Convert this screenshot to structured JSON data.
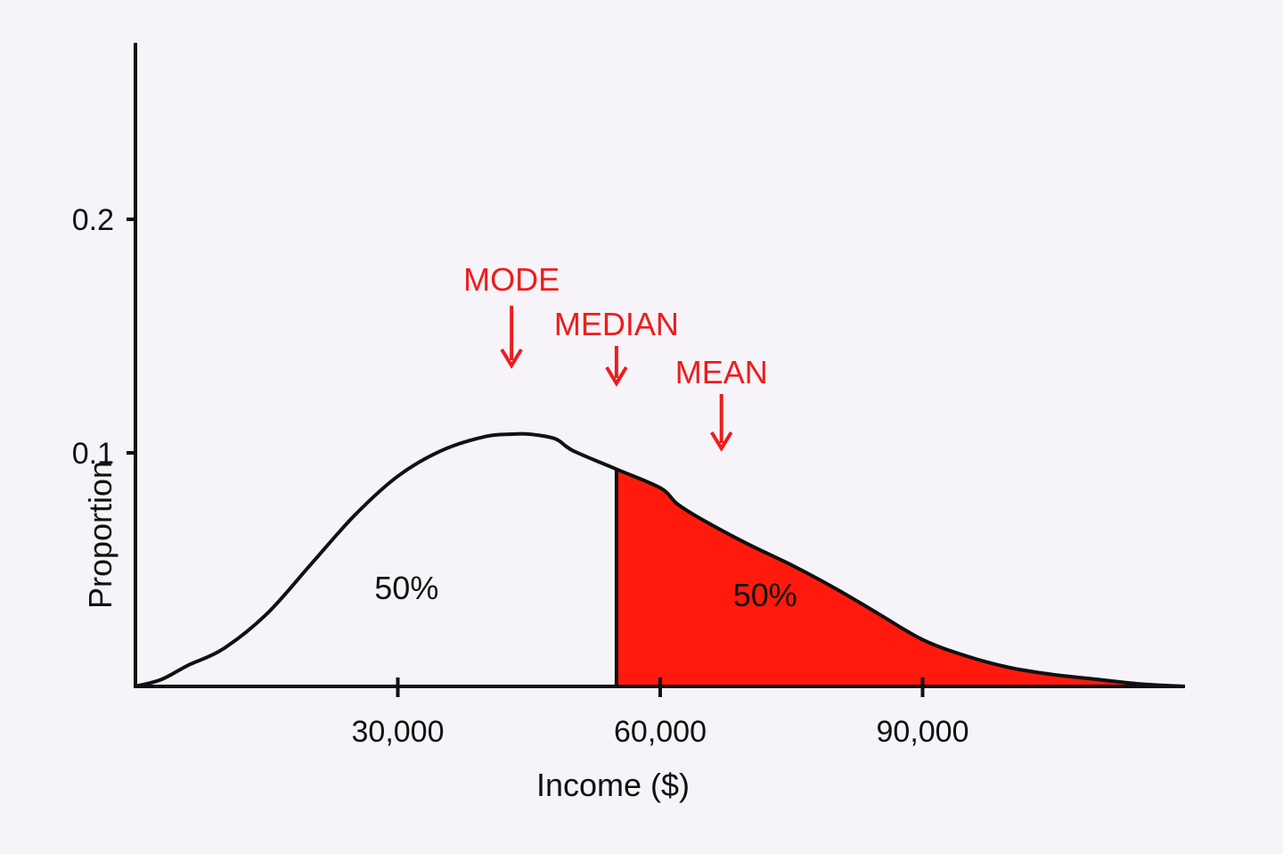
{
  "chart_data": {
    "type": "area",
    "xlabel": "Income ($)",
    "ylabel": "Proportion",
    "xlim": [
      0,
      120000
    ],
    "ylim": [
      0,
      0.25
    ],
    "x_ticks": [
      {
        "value": 30000,
        "label": "30,000"
      },
      {
        "value": 60000,
        "label": "60,000"
      },
      {
        "value": 90000,
        "label": "90,000"
      }
    ],
    "y_ticks": [
      {
        "value": 0.1,
        "label": "0.1"
      },
      {
        "value": 0.2,
        "label": "0.2"
      }
    ],
    "grid": false,
    "curve": {
      "x": [
        0,
        3000,
        6000,
        10000,
        15000,
        20000,
        25000,
        30000,
        35000,
        40000,
        43000,
        45000,
        48000,
        50000,
        55000,
        60000,
        62000,
        65000,
        70000,
        75000,
        80000,
        85000,
        90000,
        95000,
        100000,
        105000,
        110000,
        115000,
        120000
      ],
      "y": [
        0.0,
        0.003,
        0.009,
        0.016,
        0.031,
        0.052,
        0.073,
        0.09,
        0.101,
        0.107,
        0.108,
        0.108,
        0.106,
        0.101,
        0.093,
        0.085,
        0.078,
        0.071,
        0.061,
        0.052,
        0.042,
        0.031,
        0.02,
        0.013,
        0.008,
        0.005,
        0.003,
        0.001,
        0.0
      ]
    },
    "shaded_region": {
      "from": 55000,
      "to": 120000,
      "color": "#ff1a0d",
      "label": "50%"
    },
    "unshaded_label": "50%",
    "markers": [
      {
        "name": "MODE",
        "x": 43000,
        "color": "#ee1c1c"
      },
      {
        "name": "MEDIAN",
        "x": 55000,
        "color": "#ee1c1c"
      },
      {
        "name": "MEAN",
        "x": 67000,
        "color": "#ee1c1c"
      }
    ]
  }
}
